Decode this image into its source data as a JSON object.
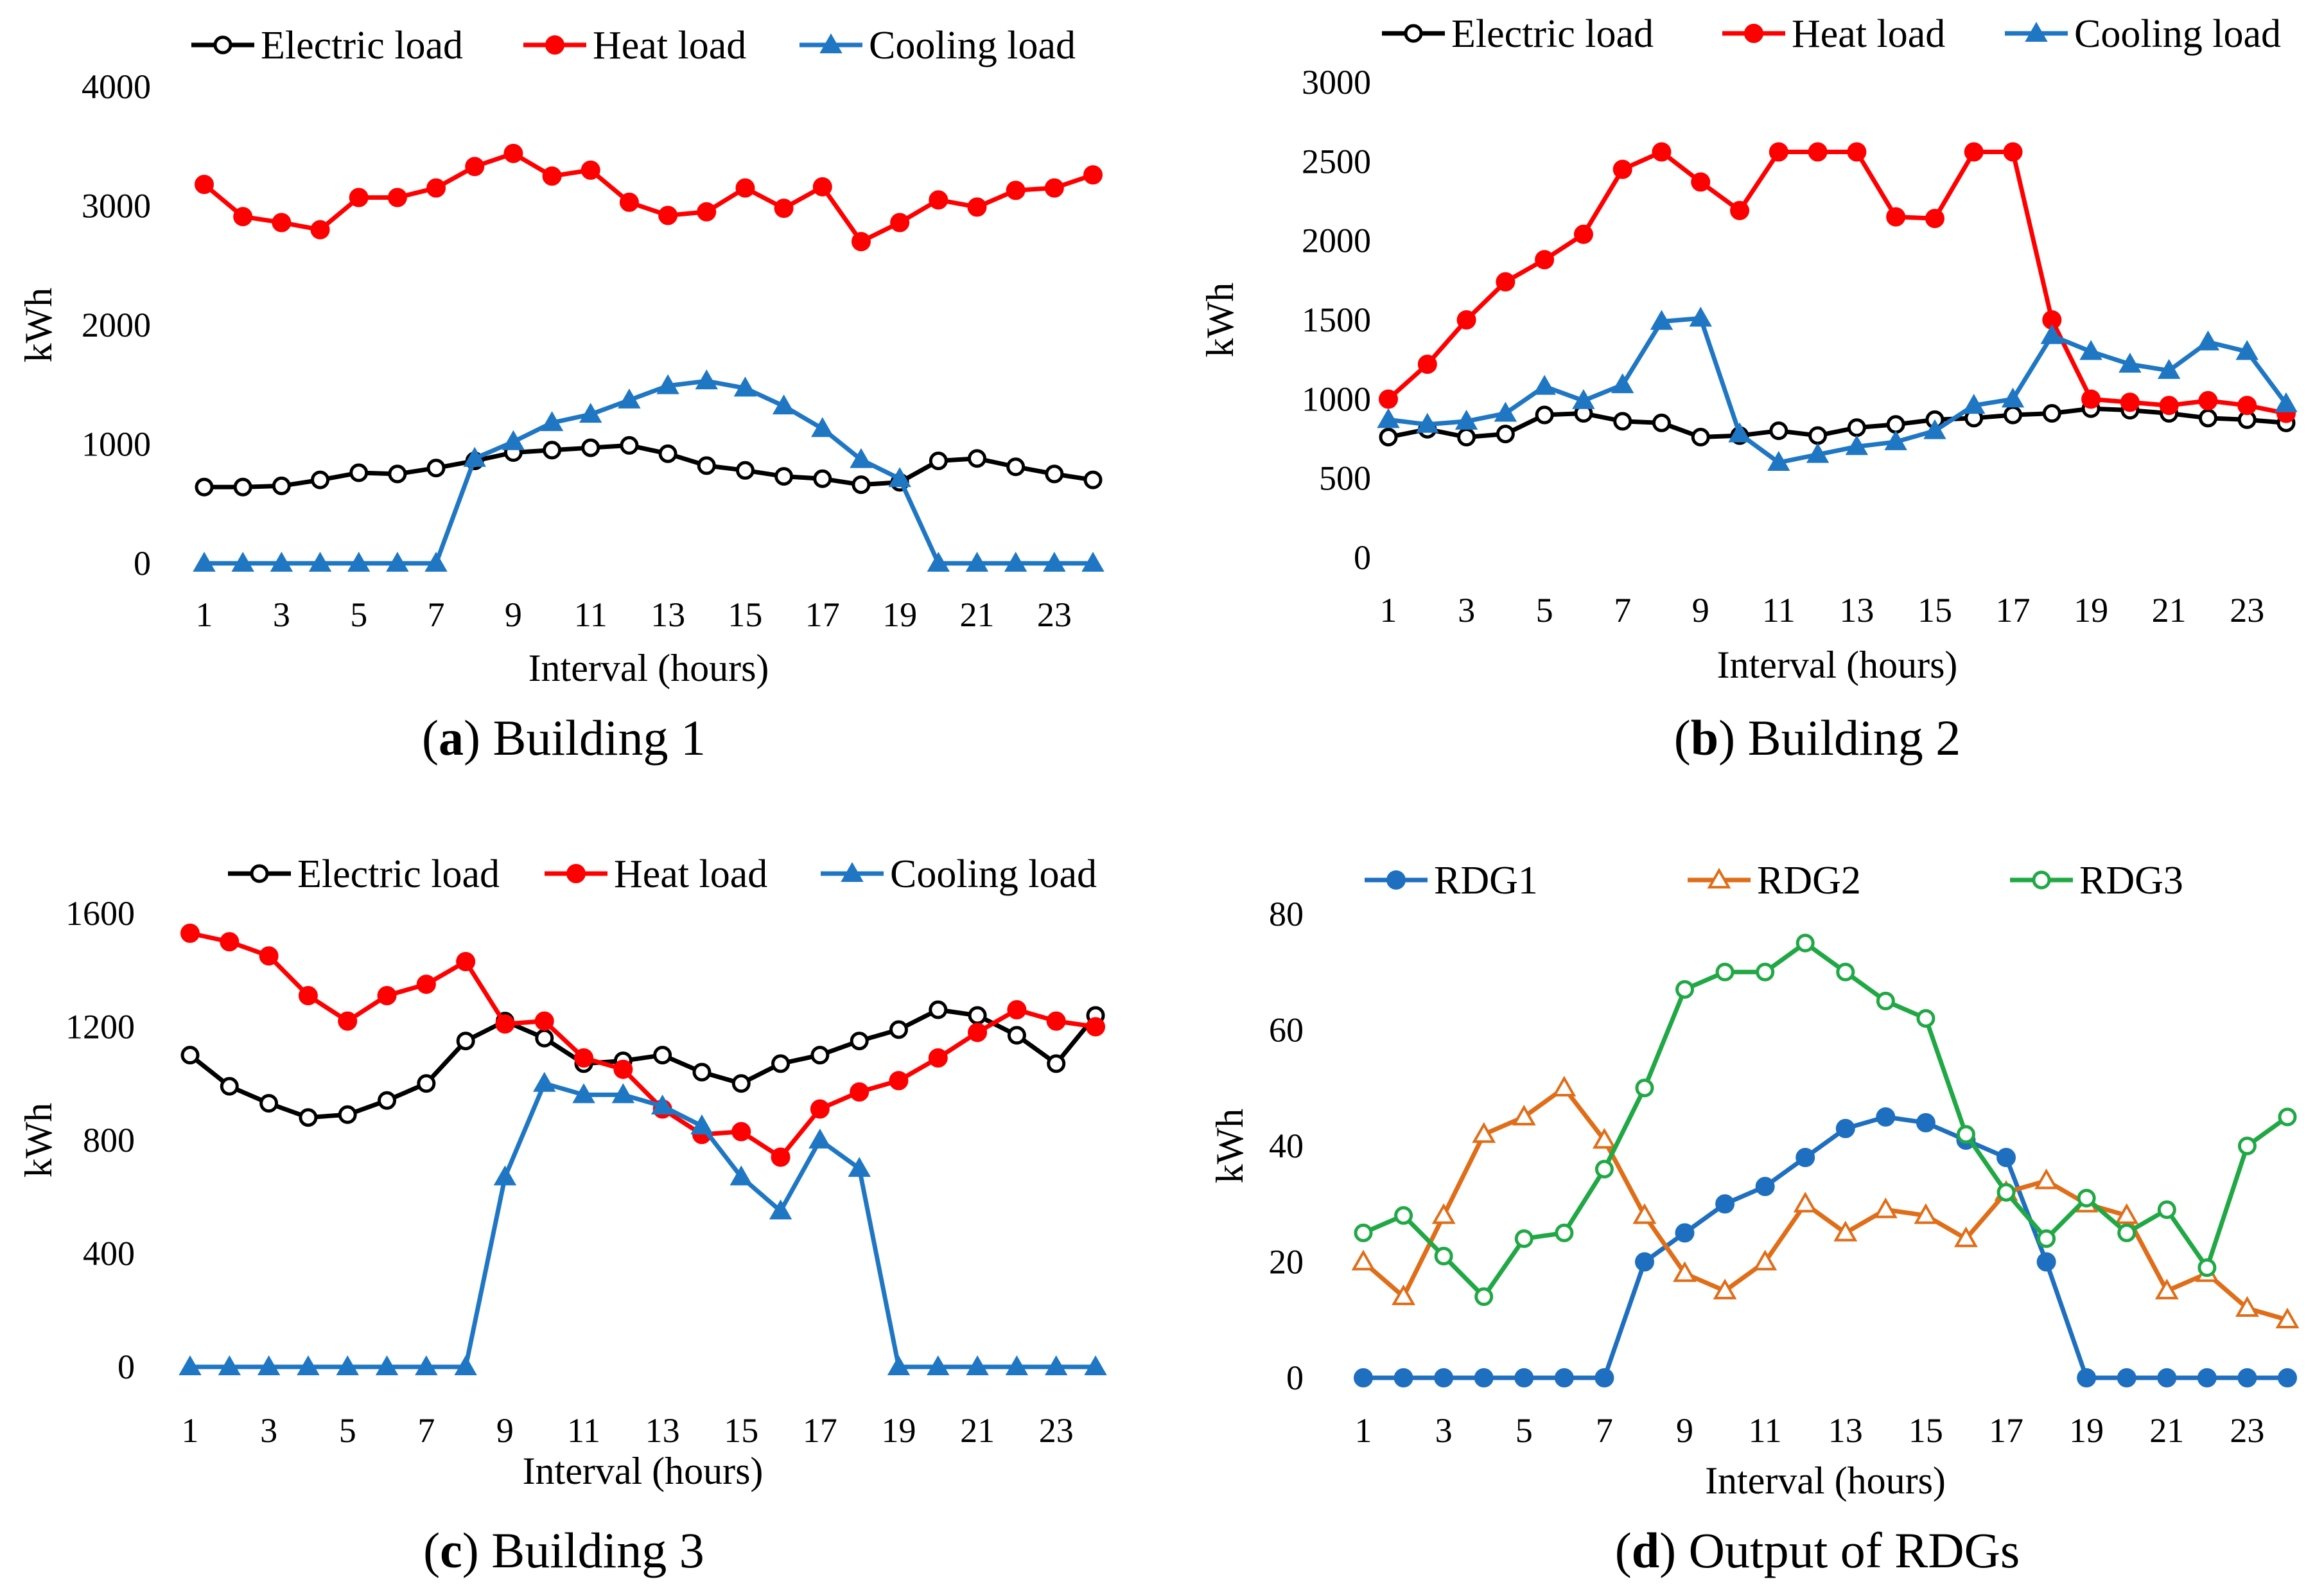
{
  "chart_data": [
    {
      "id": "a",
      "type": "line",
      "caption_letter": "a",
      "caption_text": " Building 1",
      "caption_open": "(",
      "caption_close": ")",
      "xlabel": "Interval (hours)",
      "ylabel": "kWh",
      "ylim": [
        0,
        4000
      ],
      "yticks": [
        0,
        1000,
        2000,
        3000,
        4000
      ],
      "x": [
        1,
        2,
        3,
        4,
        5,
        6,
        7,
        8,
        9,
        10,
        11,
        12,
        13,
        14,
        15,
        16,
        17,
        18,
        19,
        20,
        21,
        22,
        23,
        24
      ],
      "xtick_labels": [
        "1",
        "3",
        "5",
        "7",
        "9",
        "11",
        "13",
        "15",
        "17",
        "19",
        "21",
        "23"
      ],
      "series": [
        {
          "name": "Electric load",
          "color": "#000000",
          "marker": "open-circle",
          "values": [
            640,
            640,
            650,
            700,
            760,
            750,
            800,
            860,
            930,
            950,
            970,
            990,
            920,
            820,
            780,
            730,
            710,
            660,
            680,
            860,
            880,
            810,
            750,
            700
          ]
        },
        {
          "name": "Heat load",
          "color": "#ff0000",
          "marker": "filled-circle",
          "values": [
            3180,
            2910,
            2860,
            2800,
            3070,
            3070,
            3150,
            3330,
            3440,
            3250,
            3300,
            3030,
            2920,
            2950,
            3150,
            2980,
            3160,
            2700,
            2860,
            3050,
            2990,
            3130,
            3150,
            3260
          ]
        },
        {
          "name": "Cooling load",
          "color": "#1f77c4",
          "marker": "filled-triangle",
          "values": [
            0,
            0,
            0,
            0,
            0,
            0,
            0,
            880,
            1020,
            1180,
            1250,
            1370,
            1490,
            1530,
            1470,
            1320,
            1130,
            870,
            710,
            0,
            0,
            0,
            0,
            0
          ]
        }
      ]
    },
    {
      "id": "b",
      "type": "line",
      "caption_letter": "b",
      "caption_text": " Building 2",
      "caption_open": "(",
      "caption_close": ")",
      "xlabel": "Interval (hours)",
      "ylabel": "kWh",
      "ylim": [
        0,
        3000
      ],
      "yticks": [
        0,
        500,
        1000,
        1500,
        2000,
        2500,
        3000
      ],
      "x": [
        1,
        2,
        3,
        4,
        5,
        6,
        7,
        8,
        9,
        10,
        11,
        12,
        13,
        14,
        15,
        16,
        17,
        18,
        19,
        20,
        21,
        22,
        23,
        24
      ],
      "xtick_labels": [
        "1",
        "3",
        "5",
        "7",
        "9",
        "11",
        "13",
        "15",
        "17",
        "19",
        "21",
        "23"
      ],
      "series": [
        {
          "name": "Electric load",
          "color": "#000000",
          "marker": "open-circle",
          "values": [
            760,
            810,
            760,
            780,
            900,
            910,
            860,
            850,
            760,
            770,
            800,
            770,
            820,
            840,
            870,
            880,
            900,
            910,
            940,
            930,
            910,
            880,
            870,
            850
          ]
        },
        {
          "name": "Heat load",
          "color": "#ff0000",
          "marker": "filled-circle",
          "values": [
            1000,
            1220,
            1500,
            1740,
            1880,
            2040,
            2450,
            2560,
            2370,
            2190,
            2560,
            2560,
            2560,
            2150,
            2140,
            2560,
            2560,
            1500,
            1000,
            980,
            960,
            990,
            960,
            910
          ]
        },
        {
          "name": "Cooling load",
          "color": "#1f77c4",
          "marker": "filled-triangle",
          "values": [
            870,
            840,
            860,
            910,
            1080,
            990,
            1090,
            1490,
            1510,
            780,
            600,
            650,
            700,
            730,
            800,
            960,
            1000,
            1400,
            1300,
            1220,
            1180,
            1360,
            1300,
            970
          ]
        }
      ]
    },
    {
      "id": "c",
      "type": "line",
      "caption_letter": "c",
      "caption_text": " Building 3",
      "caption_open": "(",
      "caption_close": ")",
      "xlabel": "Interval (hours)",
      "ylabel": "kWh",
      "ylim": [
        0,
        1600
      ],
      "yticks": [
        0,
        400,
        800,
        1200,
        1600
      ],
      "x": [
        1,
        2,
        3,
        4,
        5,
        6,
        7,
        8,
        9,
        10,
        11,
        12,
        13,
        14,
        15,
        16,
        17,
        18,
        19,
        20,
        21,
        22,
        23,
        24
      ],
      "xtick_labels": [
        "1",
        "3",
        "5",
        "7",
        "9",
        "11",
        "13",
        "15",
        "17",
        "19",
        "21",
        "23"
      ],
      "series": [
        {
          "name": "Electric load",
          "color": "#000000",
          "marker": "open-circle",
          "values": [
            1100,
            990,
            930,
            880,
            890,
            940,
            1000,
            1150,
            1220,
            1160,
            1070,
            1080,
            1100,
            1040,
            1000,
            1070,
            1100,
            1150,
            1190,
            1260,
            1240,
            1170,
            1070,
            1240
          ]
        },
        {
          "name": "Heat load",
          "color": "#ff0000",
          "marker": "filled-circle",
          "values": [
            1530,
            1500,
            1450,
            1310,
            1220,
            1310,
            1350,
            1430,
            1210,
            1220,
            1090,
            1050,
            910,
            820,
            830,
            740,
            910,
            970,
            1010,
            1090,
            1180,
            1260,
            1220,
            1200
          ]
        },
        {
          "name": "Cooling load",
          "color": "#1f77c4",
          "marker": "filled-triangle",
          "values": [
            0,
            0,
            0,
            0,
            0,
            0,
            0,
            0,
            670,
            1000,
            960,
            960,
            920,
            850,
            670,
            550,
            800,
            700,
            0,
            0,
            0,
            0,
            0,
            0
          ]
        }
      ]
    },
    {
      "id": "d",
      "type": "line",
      "caption_letter": "d",
      "caption_text": " Output of RDGs",
      "caption_open": "(",
      "caption_close": ")",
      "xlabel": "Interval (hours)",
      "ylabel": "kWh",
      "ylim": [
        0,
        80
      ],
      "yticks": [
        0,
        20,
        40,
        60,
        80
      ],
      "x": [
        1,
        2,
        3,
        4,
        5,
        6,
        7,
        8,
        9,
        10,
        11,
        12,
        13,
        14,
        15,
        16,
        17,
        18,
        19,
        20,
        21,
        22,
        23,
        24
      ],
      "xtick_labels": [
        "1",
        "3",
        "5",
        "7",
        "9",
        "11",
        "13",
        "15",
        "17",
        "19",
        "21",
        "23"
      ],
      "series": [
        {
          "name": "RDG1",
          "color": "#1f6fc0",
          "marker": "filled-circle",
          "values": [
            0,
            0,
            0,
            0,
            0,
            0,
            0,
            20,
            25,
            30,
            33,
            38,
            43,
            45,
            44,
            41,
            38,
            20,
            0,
            0,
            0,
            0,
            0,
            0
          ]
        },
        {
          "name": "RDG2",
          "color": "#e06d18",
          "marker": "open-triangle",
          "values": [
            20,
            14,
            28,
            42,
            45,
            50,
            41,
            28,
            18,
            15,
            20,
            30,
            25,
            29,
            28,
            24,
            32,
            34,
            30,
            28,
            15,
            18,
            12,
            10
          ]
        },
        {
          "name": "RDG3",
          "color": "#20a845",
          "marker": "open-circle",
          "values": [
            25,
            28,
            21,
            14,
            24,
            25,
            36,
            50,
            67,
            70,
            70,
            75,
            70,
            65,
            62,
            42,
            32,
            24,
            31,
            25,
            29,
            19,
            40,
            45
          ]
        }
      ]
    }
  ]
}
